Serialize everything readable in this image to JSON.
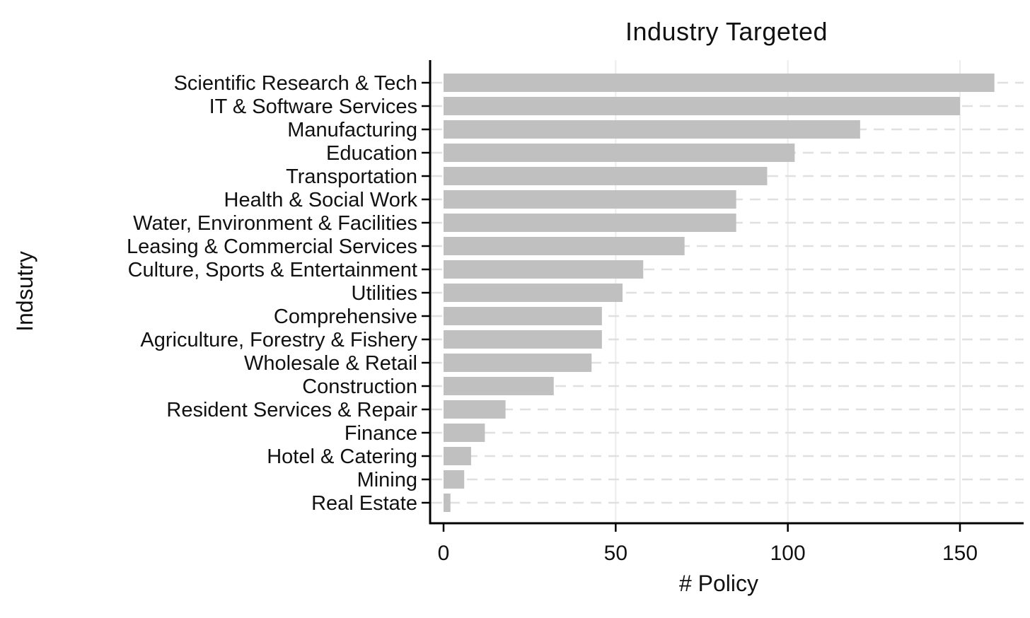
{
  "chart_data": {
    "type": "bar",
    "orientation": "horizontal",
    "title": "Industry Targeted",
    "xlabel": "# Policy",
    "ylabel": "Indsutry",
    "categories": [
      "Scientific Research & Tech",
      "IT & Software Services",
      "Manufacturing",
      "Education",
      "Transportation",
      "Health & Social Work",
      "Water, Environment & Facilities",
      "Leasing & Commercial Services",
      "Culture, Sports & Entertainment",
      "Utilities",
      "Comprehensive",
      "Agriculture, Forestry & Fishery",
      "Wholesale & Retail",
      "Construction",
      "Resident Services & Repair",
      "Finance",
      "Hotel & Catering",
      "Mining",
      "Real Estate"
    ],
    "values": [
      160,
      150,
      121,
      102,
      94,
      85,
      85,
      70,
      58,
      52,
      46,
      46,
      43,
      32,
      18,
      12,
      8,
      6,
      2
    ],
    "xlim": [
      0,
      168
    ],
    "xticks": [
      0,
      50,
      100,
      150
    ],
    "xtick_labels": [
      "0",
      "50",
      "100",
      "150"
    ],
    "grid": "vertical solid light + horizontal dashed per category",
    "legend": "none",
    "colors": {
      "bar": "#c0c0c0",
      "axis": "#000000",
      "text": "#111111",
      "grid_vertical": "#ececec",
      "grid_horizontal": "#e0e0e0",
      "background": "#ffffff"
    }
  }
}
